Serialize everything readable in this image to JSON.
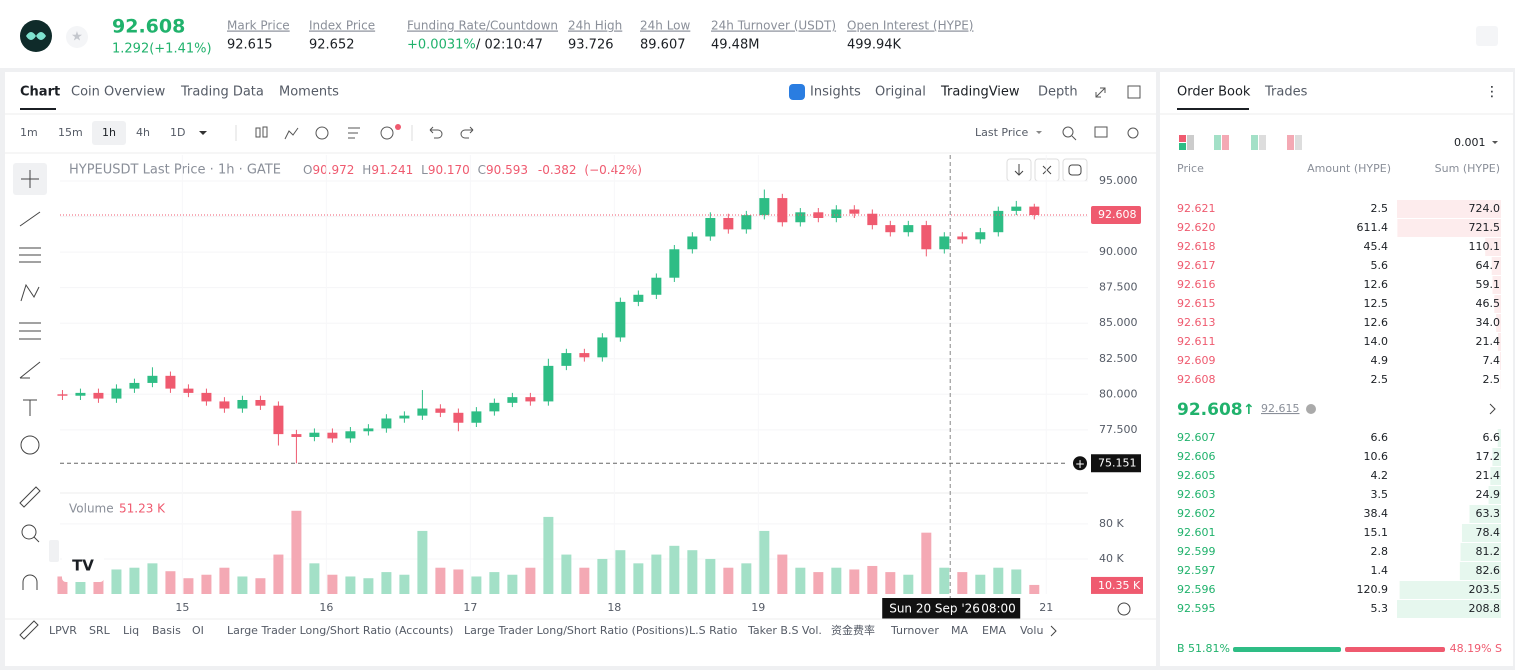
{
  "header": {
    "price": "92.608",
    "change": "1.292(+1.41%)",
    "stats": [
      {
        "label": "Mark Price",
        "value": "92.615"
      },
      {
        "label": "Index Price",
        "value": "92.652"
      },
      {
        "label": "Funding Rate/Countdown",
        "value": "+0.0031%",
        "extra": "/ 02:10:47"
      },
      {
        "label": "24h High",
        "value": "93.726"
      },
      {
        "label": "24h Low",
        "value": "89.607"
      },
      {
        "label": "24h Turnover (USDT)",
        "value": "49.48M"
      },
      {
        "label": "Open Interest (HYPE)",
        "value": "499.94K"
      }
    ]
  },
  "tabs": [
    "Chart",
    "Coin Overview",
    "Trading Data",
    "Moments"
  ],
  "views": [
    "Insights",
    "Original",
    "TradingView",
    "Depth"
  ],
  "intervals": [
    "1m",
    "15m",
    "1h",
    "4h",
    "1D"
  ],
  "price_source": "Last Price",
  "chart_data": {
    "type": "candlestick",
    "legend": {
      "symbol": "HYPEUSDT Last Price · 1h · GATE",
      "ohlc": [
        {
          "key": "O",
          "value": "90.972"
        },
        {
          "key": "H",
          "value": "91.241"
        },
        {
          "key": "L",
          "value": "90.170"
        },
        {
          "key": "C",
          "value": "90.593"
        }
      ],
      "change": "-0.382",
      "change_pct": "(−0.42%)"
    },
    "volume_title": "Volume",
    "volume_hover": "51.23 K",
    "volume_last_label": "10.35 K",
    "candles": {
      "x": [
        14.167,
        14.292,
        14.417,
        14.542,
        14.667,
        14.792,
        14.917,
        15.042,
        15.167,
        15.292,
        15.417,
        15.542,
        15.667,
        15.792,
        15.917,
        16.042,
        16.167,
        16.292,
        16.417,
        16.542,
        16.667,
        16.792,
        16.917,
        17.042,
        17.167,
        17.292,
        17.417,
        17.542,
        17.667,
        17.792,
        17.917,
        18.042,
        18.167,
        18.292,
        18.417,
        18.542,
        18.667,
        18.792,
        18.917,
        19.042,
        19.167,
        19.292,
        19.417,
        19.542,
        19.667,
        19.792,
        19.917,
        20.042,
        20.167,
        20.292,
        20.417,
        20.542,
        20.667,
        20.792,
        20.917
      ],
      "open": [
        80.0,
        79.9,
        80.1,
        79.7,
        80.4,
        80.8,
        81.3,
        80.4,
        80.1,
        79.5,
        79.0,
        79.6,
        79.2,
        77.2,
        77.0,
        77.3,
        76.9,
        77.4,
        77.6,
        78.3,
        78.5,
        79.0,
        78.7,
        78.0,
        78.8,
        79.4,
        79.8,
        79.5,
        82.0,
        82.9,
        82.6,
        84.0,
        86.5,
        87.0,
        88.2,
        90.2,
        91.1,
        92.4,
        91.6,
        92.6,
        93.8,
        92.1,
        92.8,
        92.4,
        93.0,
        92.7,
        91.9,
        91.4,
        91.9,
        90.2,
        91.1,
        90.9,
        91.4,
        92.9,
        93.2
      ],
      "high": [
        80.3,
        80.4,
        80.4,
        80.7,
        81.1,
        81.9,
        81.6,
        80.7,
        80.4,
        79.8,
        79.9,
        79.9,
        79.5,
        77.5,
        77.6,
        77.6,
        77.7,
        77.9,
        78.6,
        78.8,
        80.3,
        79.3,
        79.0,
        79.1,
        79.7,
        80.1,
        80.1,
        82.5,
        83.2,
        83.2,
        84.3,
        86.8,
        87.3,
        88.5,
        90.5,
        91.4,
        92.8,
        92.7,
        92.9,
        94.4,
        94.1,
        93.1,
        93.1,
        93.3,
        93.3,
        93.0,
        92.2,
        92.2,
        92.2,
        91.4,
        91.4,
        91.7,
        93.2,
        93.6,
        93.4
      ],
      "low": [
        79.6,
        79.6,
        79.4,
        79.4,
        80.1,
        80.5,
        80.1,
        79.8,
        79.2,
        78.7,
        78.7,
        78.9,
        76.4,
        75.151,
        76.7,
        76.6,
        76.6,
        77.1,
        77.3,
        78.0,
        78.2,
        78.4,
        77.4,
        77.7,
        78.5,
        79.1,
        79.2,
        79.2,
        81.7,
        82.3,
        82.3,
        83.7,
        86.2,
        86.7,
        87.9,
        89.9,
        90.8,
        91.3,
        91.3,
        92.3,
        91.8,
        91.8,
        92.1,
        92.1,
        92.4,
        91.6,
        91.1,
        91.1,
        89.7,
        89.9,
        90.6,
        90.6,
        91.1,
        92.6,
        92.3
      ],
      "close": [
        79.9,
        80.1,
        79.7,
        80.4,
        80.8,
        81.3,
        80.4,
        80.1,
        79.5,
        79.0,
        79.6,
        79.2,
        77.2,
        77.0,
        77.3,
        76.9,
        77.4,
        77.6,
        78.3,
        78.5,
        79.0,
        78.7,
        78.0,
        78.8,
        79.4,
        79.8,
        79.5,
        82.0,
        82.9,
        82.6,
        84.0,
        86.5,
        87.0,
        88.2,
        90.2,
        91.1,
        92.4,
        91.6,
        92.6,
        93.8,
        92.1,
        92.8,
        92.4,
        93.0,
        92.7,
        91.9,
        91.4,
        91.9,
        90.2,
        91.1,
        90.9,
        91.4,
        92.9,
        93.2,
        92.608
      ],
      "volume": [
        20,
        25,
        22,
        28,
        30,
        35,
        26,
        18,
        22,
        30,
        20,
        18,
        45,
        95,
        35,
        22,
        20,
        18,
        25,
        22,
        72,
        30,
        28,
        20,
        25,
        22,
        30,
        88,
        45,
        30,
        40,
        50,
        35,
        45,
        55,
        50,
        40,
        30,
        35,
        72,
        45,
        30,
        25,
        30,
        28,
        32,
        25,
        22,
        70,
        30,
        25,
        22,
        30,
        28,
        10.35
      ]
    },
    "up_color": "#2ebd85",
    "down_color": "#ef5a6f",
    "up_volume_color": "#a3e0c7",
    "down_volume_color": "#f4a9b4",
    "xlim": [
      14.15,
      21.29
    ],
    "xticks": [
      15,
      16,
      17,
      18,
      19,
      21
    ],
    "ylim": [
      73.27,
      96.83
    ],
    "yticks": [
      {
        "value": 95,
        "label": "95.000"
      },
      {
        "value": 92.5,
        "label": "92.500"
      },
      {
        "value": 90,
        "label": "90.000"
      },
      {
        "value": 87.5,
        "label": "87.500"
      },
      {
        "value": 85,
        "label": "85.000"
      },
      {
        "value": 82.5,
        "label": "82.500"
      },
      {
        "value": 80,
        "label": "80.000"
      },
      {
        "value": 77.5,
        "label": "77.500"
      }
    ],
    "volume_ylim": [
      0,
      113
    ],
    "volume_yticks": [
      {
        "value": 80,
        "label": "80 K"
      },
      {
        "value": 40,
        "label": "40 K"
      }
    ],
    "crosshair": {
      "x": 20.333,
      "y": 75.151,
      "date_label": "Sun 20 Sep '26",
      "time_label": "08:00"
    }
  },
  "indicators": [
    "LPVR",
    "SRL",
    "Liq",
    "Basis",
    "OI",
    "Large Trader Long/Short Ratio (Accounts)",
    "Large Trader Long/Short Ratio (Positions)",
    "L.S Ratio",
    "Taker B.S Vol.",
    "资金费率",
    "Turnover",
    "MA",
    "EMA",
    "Volu"
  ],
  "order_book": {
    "tabs": [
      "Order Book",
      "Trades"
    ],
    "precision": "0.001",
    "columns": [
      "Price",
      "Amount (HYPE)",
      "Sum (HYPE)"
    ],
    "asks": [
      {
        "price": "92.621",
        "amount": "2.5",
        "sum": "724.0"
      },
      {
        "price": "92.620",
        "amount": "611.4",
        "sum": "721.5"
      },
      {
        "price": "92.618",
        "amount": "45.4",
        "sum": "110.1"
      },
      {
        "price": "92.617",
        "amount": "5.6",
        "sum": "64.7"
      },
      {
        "price": "92.616",
        "amount": "12.6",
        "sum": "59.1"
      },
      {
        "price": "92.615",
        "amount": "12.5",
        "sum": "46.5"
      },
      {
        "price": "92.613",
        "amount": "12.6",
        "sum": "34.0"
      },
      {
        "price": "92.611",
        "amount": "14.0",
        "sum": "21.4"
      },
      {
        "price": "92.609",
        "amount": "4.9",
        "sum": "7.4"
      },
      {
        "price": "92.608",
        "amount": "2.5",
        "sum": "2.5"
      }
    ],
    "mid_price": "92.608",
    "mark_price": "92.615",
    "bids": [
      {
        "price": "92.607",
        "amount": "6.6",
        "sum": "6.6"
      },
      {
        "price": "92.606",
        "amount": "10.6",
        "sum": "17.2"
      },
      {
        "price": "92.605",
        "amount": "4.2",
        "sum": "21.4"
      },
      {
        "price": "92.603",
        "amount": "3.5",
        "sum": "24.9"
      },
      {
        "price": "92.602",
        "amount": "38.4",
        "sum": "63.3"
      },
      {
        "price": "92.601",
        "amount": "15.1",
        "sum": "78.4"
      },
      {
        "price": "92.599",
        "amount": "2.8",
        "sum": "81.2"
      },
      {
        "price": "92.597",
        "amount": "1.4",
        "sum": "82.6"
      },
      {
        "price": "92.596",
        "amount": "120.9",
        "sum": "203.5"
      },
      {
        "price": "92.595",
        "amount": "5.3",
        "sum": "208.8"
      }
    ],
    "buy_ratio": "B 51.81%",
    "sell_ratio": "48.19% S"
  }
}
